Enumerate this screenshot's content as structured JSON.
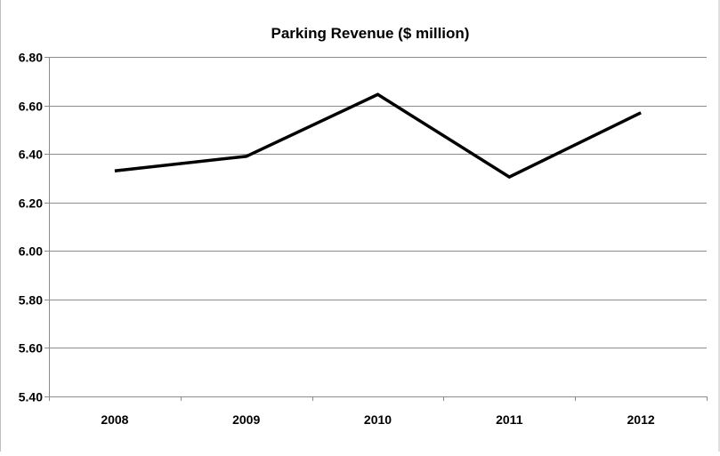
{
  "chart_data": {
    "type": "line",
    "title": "Parking Revenue ($ million)",
    "xlabel": "",
    "ylabel": "",
    "categories": [
      "2008",
      "2009",
      "2010",
      "2011",
      "2012"
    ],
    "series": [
      {
        "values": [
          6.33,
          6.39,
          6.645,
          6.305,
          6.57
        ]
      }
    ],
    "ylim": [
      5.4,
      6.8
    ],
    "ytick_labels": [
      "5.40",
      "5.60",
      "5.80",
      "6.00",
      "6.20",
      "6.40",
      "6.60",
      "6.80"
    ],
    "grid": true,
    "legend": "none",
    "line_color": "#000000"
  }
}
